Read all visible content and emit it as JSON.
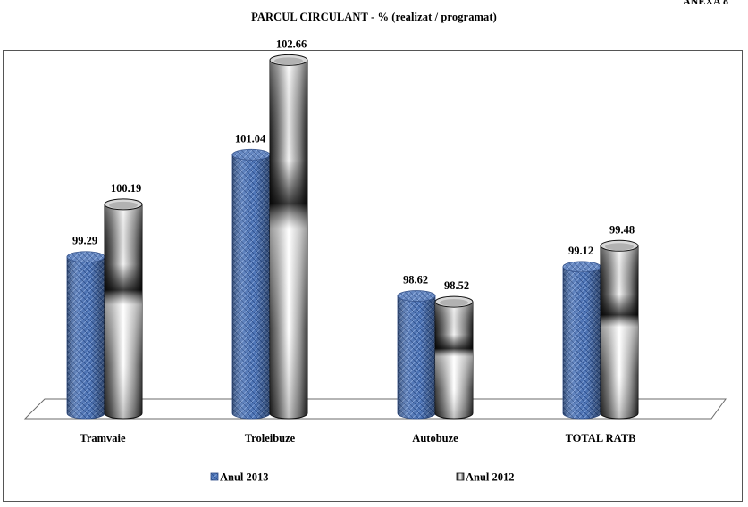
{
  "annex_label": "ANEXA 8",
  "page_title": "PARCUL  CIRCULANT - % (realizat / programat)",
  "chart_data": {
    "type": "bar",
    "title": "PARCUL  CIRCULANT - % (realizat / programat)",
    "categories": [
      "Tramvaie",
      "Troleibuze",
      "Autobuze",
      "TOTAL RATB"
    ],
    "series": [
      {
        "name": "Anul 2013",
        "values": [
          99.29,
          101.04,
          98.62,
          99.12
        ],
        "color": "#4f76b8"
      },
      {
        "name": "Anul 2012",
        "values": [
          100.19,
          102.66,
          98.52,
          99.48
        ],
        "color": "#bdbdbd"
      }
    ],
    "value_labels": {
      "Anul 2013": [
        "99.29",
        "101.04",
        "98.62",
        "99.12"
      ],
      "Anul 2012": [
        "100.19",
        "102.66",
        "98.52",
        "99.48"
      ]
    },
    "style": "3d-cylinder",
    "grid": false,
    "legend_position": "bottom"
  }
}
